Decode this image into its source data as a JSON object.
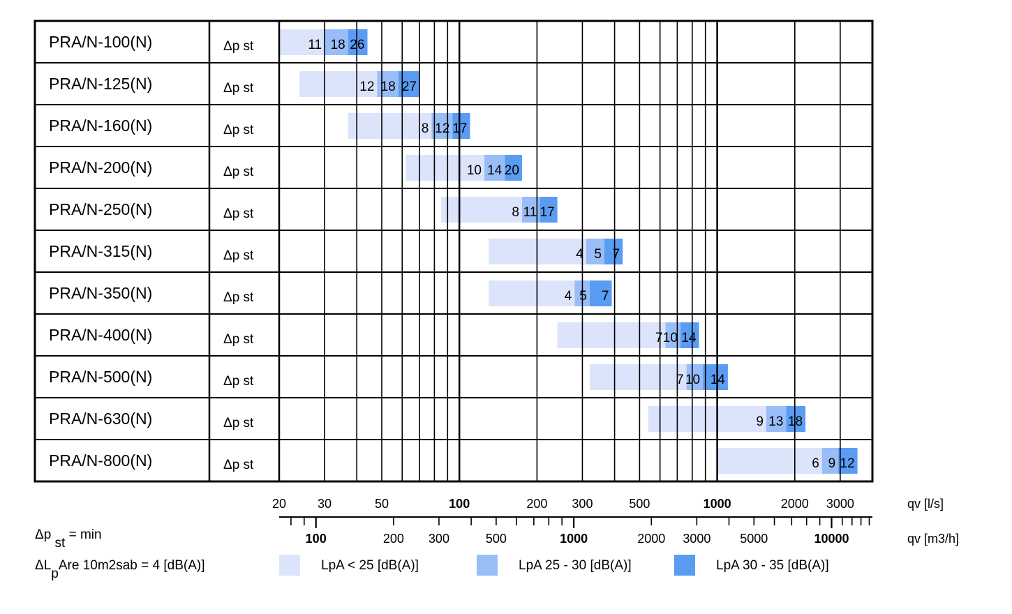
{
  "chart_data": {
    "type": "bar",
    "subtype": "horizontal-range-bar-log-scale",
    "row_label": "Δp st",
    "x_axis": {
      "scale": "log",
      "range_ls": [
        20,
        4000
      ],
      "ticks_ls": [
        20,
        30,
        50,
        100,
        200,
        300,
        500,
        1000,
        2000,
        3000
      ],
      "tick_labels_ls": [
        "20",
        "30",
        "50",
        "100",
        "200",
        "300",
        "500",
        "1000",
        "2000",
        "3000"
      ],
      "bold_ticks_ls": [
        "100",
        "1000"
      ],
      "unit_ls": "qv [l/s]",
      "ticks_m3h": [
        100,
        200,
        300,
        500,
        1000,
        2000,
        3000,
        5000,
        10000
      ],
      "tick_labels_m3h": [
        "100",
        "200",
        "300",
        "500",
        "1000",
        "2000",
        "3000",
        "5000",
        "10000"
      ],
      "bold_ticks_m3h": [
        "100",
        "1000",
        "10000"
      ],
      "unit_m3h": "qv [m3/h]"
    },
    "categories": [
      "PRA/N-100(N)",
      "PRA/N-125(N)",
      "PRA/N-160(N)",
      "PRA/N-200(N)",
      "PRA/N-250(N)",
      "PRA/N-315(N)",
      "PRA/N-350(N)",
      "PRA/N-400(N)",
      "PRA/N-500(N)",
      "PRA/N-630(N)",
      "PRA/N-800(N)"
    ],
    "series": [
      {
        "name": "LpA < 25 [dB(A)]",
        "color": "#dce4fb",
        "ranges_ls": [
          [
            20,
            30
          ],
          [
            24,
            48
          ],
          [
            37,
            78
          ],
          [
            62,
            125
          ],
          [
            85,
            175
          ],
          [
            130,
            310
          ],
          [
            130,
            280
          ],
          [
            240,
            630
          ],
          [
            320,
            760
          ],
          [
            540,
            1550
          ],
          [
            1000,
            2550
          ]
        ],
        "labels": [
          "11",
          "12",
          "8",
          "10",
          "8",
          "4",
          "4",
          "7",
          "7",
          "9",
          "6"
        ]
      },
      {
        "name": "LpA 25 - 30 [dB(A)]",
        "color": "#99bef7",
        "ranges_ls": [
          [
            30,
            37
          ],
          [
            48,
            58
          ],
          [
            78,
            94
          ],
          [
            125,
            150
          ],
          [
            175,
            205
          ],
          [
            310,
            365
          ],
          [
            280,
            320
          ],
          [
            630,
            720
          ],
          [
            760,
            880
          ],
          [
            1550,
            1850
          ],
          [
            2550,
            2950
          ]
        ],
        "labels": [
          "18",
          "18",
          "12",
          "14",
          "11",
          "5",
          "5",
          "10",
          "10",
          "13",
          "9"
        ]
      },
      {
        "name": "LpA 30 - 35 [dB(A)]",
        "color": "#5b9cf3",
        "ranges_ls": [
          [
            37,
            44
          ],
          [
            58,
            70
          ],
          [
            94,
            110
          ],
          [
            150,
            175
          ],
          [
            205,
            240
          ],
          [
            365,
            430
          ],
          [
            320,
            390
          ],
          [
            720,
            850
          ],
          [
            880,
            1100
          ],
          [
            1850,
            2200
          ],
          [
            2950,
            3500
          ]
        ],
        "labels": [
          "26",
          "27",
          "17",
          "20",
          "17",
          "7",
          "7",
          "14",
          "14",
          "18",
          "12"
        ]
      }
    ],
    "notes": {
      "dp_prefix": "Δp",
      "dp_sub": "st",
      "dp_suffix": "= min",
      "dl_prefix": "ΔL",
      "dl_sub": "p",
      "dl_suffix": "Are 10m2sab = 4 [dB(A)]"
    }
  }
}
